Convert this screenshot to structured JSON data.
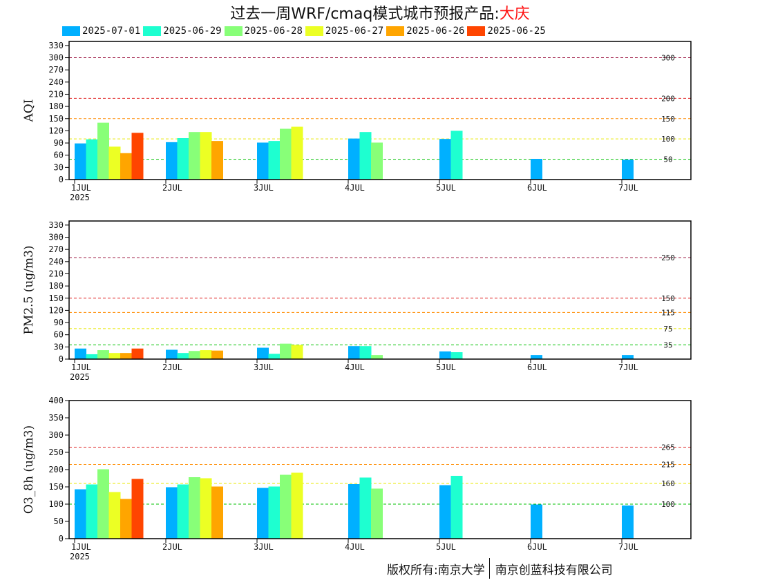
{
  "title": {
    "prefix": "过去一周WRF/cmaq模式城市预报产品:",
    "city": "大庆"
  },
  "copyright": {
    "owner": "版权所有:南京大学",
    "company": "南京创蓝科技有限公司"
  },
  "colors": {
    "2025-07-01": "#00b0ff",
    "2025-06-29": "#1effd0",
    "2025-06-28": "#88ff78",
    "2025-06-27": "#ecff24",
    "2025-06-26": "#ffa500",
    "2025-06-25": "#ff4500"
  },
  "chart_data": [
    {
      "type": "bar",
      "ylabel": "AQI",
      "ylim": [
        0,
        340
      ],
      "yticks": [
        0,
        30,
        60,
        90,
        120,
        150,
        180,
        210,
        240,
        270,
        300,
        330
      ],
      "categories": [
        "1JUL",
        "2JUL",
        "3JUL",
        "4JUL",
        "5JUL",
        "6JUL",
        "7JUL"
      ],
      "x_sublabel": "2025",
      "reference_lines": [
        {
          "value": 300,
          "label": "300",
          "color": "#a0204a"
        },
        {
          "value": 200,
          "label": "200",
          "color": "#e02020"
        },
        {
          "value": 150,
          "label": "150",
          "color": "#ff8c00"
        },
        {
          "value": 100,
          "label": "100",
          "color": "#e8e800"
        },
        {
          "value": 50,
          "label": "50",
          "color": "#00c000"
        }
      ],
      "series": [
        {
          "name": "2025-07-01",
          "values": [
            89,
            92,
            91,
            101,
            100,
            51,
            49
          ]
        },
        {
          "name": "2025-06-29",
          "values": [
            99,
            102,
            95,
            117,
            120,
            null,
            null
          ]
        },
        {
          "name": "2025-06-28",
          "values": [
            140,
            117,
            125,
            91,
            null,
            null,
            null
          ]
        },
        {
          "name": "2025-06-27",
          "values": [
            81,
            117,
            130,
            null,
            null,
            null,
            null
          ]
        },
        {
          "name": "2025-06-26",
          "values": [
            65,
            95,
            null,
            null,
            null,
            null,
            null
          ]
        },
        {
          "name": "2025-06-25",
          "values": [
            115,
            null,
            null,
            null,
            null,
            null,
            null
          ]
        }
      ]
    },
    {
      "type": "bar",
      "ylabel": "PM2.5 (ug/m3)",
      "ylim": [
        0,
        340
      ],
      "yticks": [
        0,
        30,
        60,
        90,
        120,
        150,
        180,
        210,
        240,
        270,
        300,
        330
      ],
      "categories": [
        "1JUL",
        "2JUL",
        "3JUL",
        "4JUL",
        "5JUL",
        "6JUL",
        "7JUL"
      ],
      "x_sublabel": "2025",
      "reference_lines": [
        {
          "value": 250,
          "label": "250",
          "color": "#a0204a"
        },
        {
          "value": 150,
          "label": "150",
          "color": "#e02020"
        },
        {
          "value": 115,
          "label": "115",
          "color": "#ff8c00"
        },
        {
          "value": 75,
          "label": "75",
          "color": "#e8e800"
        },
        {
          "value": 35,
          "label": "35",
          "color": "#00c000"
        }
      ],
      "series": [
        {
          "name": "2025-07-01",
          "values": [
            26,
            23,
            28,
            32,
            19,
            10,
            10
          ]
        },
        {
          "name": "2025-06-29",
          "values": [
            12,
            15,
            13,
            32,
            17,
            null,
            null
          ]
        },
        {
          "name": "2025-06-28",
          "values": [
            22,
            20,
            38,
            10,
            null,
            null,
            null
          ]
        },
        {
          "name": "2025-06-27",
          "values": [
            15,
            22,
            35,
            null,
            null,
            null,
            null
          ]
        },
        {
          "name": "2025-06-26",
          "values": [
            15,
            21,
            null,
            null,
            null,
            null,
            null
          ]
        },
        {
          "name": "2025-06-25",
          "values": [
            26,
            null,
            null,
            null,
            null,
            null,
            null
          ]
        }
      ]
    },
    {
      "type": "bar",
      "ylabel": "O3_8h (ug/m3)",
      "ylim": [
        0,
        400
      ],
      "yticks": [
        0,
        50,
        100,
        150,
        200,
        250,
        300,
        350,
        400
      ],
      "categories": [
        "1JUL",
        "2JUL",
        "3JUL",
        "4JUL",
        "5JUL",
        "6JUL",
        "7JUL"
      ],
      "x_sublabel": "2025",
      "reference_lines": [
        {
          "value": 265,
          "label": "265",
          "color": "#e02020"
        },
        {
          "value": 215,
          "label": "215",
          "color": "#ff8c00"
        },
        {
          "value": 160,
          "label": "160",
          "color": "#e8e800"
        },
        {
          "value": 100,
          "label": "100",
          "color": "#00c000"
        }
      ],
      "series": [
        {
          "name": "2025-07-01",
          "values": [
            143,
            149,
            147,
            158,
            155,
            99,
            96
          ]
        },
        {
          "name": "2025-06-29",
          "values": [
            157,
            157,
            151,
            177,
            182,
            null,
            null
          ]
        },
        {
          "name": "2025-06-28",
          "values": [
            201,
            178,
            185,
            145,
            null,
            null,
            null
          ]
        },
        {
          "name": "2025-06-27",
          "values": [
            135,
            175,
            191,
            null,
            null,
            null,
            null
          ]
        },
        {
          "name": "2025-06-26",
          "values": [
            115,
            151,
            null,
            null,
            null,
            null,
            null
          ]
        },
        {
          "name": "2025-06-25",
          "values": [
            173,
            null,
            null,
            null,
            null,
            null,
            null
          ]
        }
      ]
    }
  ]
}
